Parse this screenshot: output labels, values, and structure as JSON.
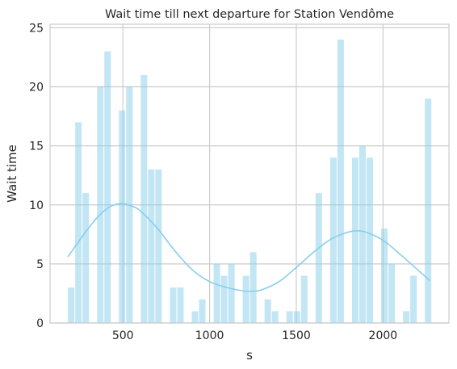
{
  "chart_data": {
    "type": "bar",
    "subtype": "histogram-with-kde",
    "title": "Wait time till next departure for Station Vendôme",
    "xlabel": "s",
    "ylabel": "Wait time",
    "xlim": [
      80,
      2380
    ],
    "ylim": [
      0,
      25.3
    ],
    "xticks": [
      500,
      1000,
      1500,
      2000
    ],
    "yticks": [
      0,
      5,
      10,
      15,
      20,
      25
    ],
    "grid": true,
    "bar_color": "#87CEEB",
    "line_color": "#87CEEB",
    "bin_width": 42,
    "bins": [
      {
        "x": 183,
        "count": 3
      },
      {
        "x": 225,
        "count": 17
      },
      {
        "x": 267,
        "count": 11
      },
      {
        "x": 351,
        "count": 20
      },
      {
        "x": 393,
        "count": 23
      },
      {
        "x": 477,
        "count": 18
      },
      {
        "x": 519,
        "count": 20
      },
      {
        "x": 603,
        "count": 21
      },
      {
        "x": 645,
        "count": 13
      },
      {
        "x": 687,
        "count": 13
      },
      {
        "x": 771,
        "count": 3
      },
      {
        "x": 813,
        "count": 3
      },
      {
        "x": 897,
        "count": 1
      },
      {
        "x": 939,
        "count": 2
      },
      {
        "x": 1023,
        "count": 5
      },
      {
        "x": 1065,
        "count": 4
      },
      {
        "x": 1107,
        "count": 5
      },
      {
        "x": 1191,
        "count": 4
      },
      {
        "x": 1233,
        "count": 6
      },
      {
        "x": 1317,
        "count": 2
      },
      {
        "x": 1359,
        "count": 1
      },
      {
        "x": 1443,
        "count": 1
      },
      {
        "x": 1485,
        "count": 1
      },
      {
        "x": 1527,
        "count": 4
      },
      {
        "x": 1611,
        "count": 11
      },
      {
        "x": 1695,
        "count": 14
      },
      {
        "x": 1737,
        "count": 24
      },
      {
        "x": 1821,
        "count": 14
      },
      {
        "x": 1863,
        "count": 15
      },
      {
        "x": 1905,
        "count": 14
      },
      {
        "x": 1989,
        "count": 8
      },
      {
        "x": 2031,
        "count": 5
      },
      {
        "x": 2115,
        "count": 1
      },
      {
        "x": 2157,
        "count": 4
      },
      {
        "x": 2241,
        "count": 19
      }
    ],
    "kde": {
      "x": [
        183,
        250,
        300,
        350,
        400,
        450,
        500,
        550,
        600,
        700,
        800,
        900,
        1000,
        1100,
        1200,
        1250,
        1300,
        1400,
        1500,
        1600,
        1700,
        1800,
        1850,
        1900,
        2000,
        2100,
        2200,
        2270
      ],
      "y": [
        5.6,
        7.0,
        8.0,
        8.9,
        9.6,
        10.0,
        10.1,
        9.9,
        9.5,
        8.0,
        6.1,
        4.5,
        3.5,
        3.0,
        2.7,
        2.7,
        2.8,
        3.5,
        4.7,
        6.0,
        7.1,
        7.7,
        7.8,
        7.7,
        7.0,
        5.8,
        4.5,
        3.6
      ]
    }
  }
}
